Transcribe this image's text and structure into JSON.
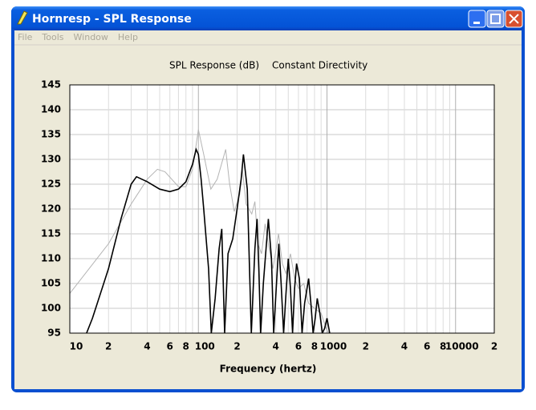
{
  "window": {
    "title": "Hornresp - SPL Response",
    "menu": [
      "File",
      "Tools",
      "Window",
      "Help"
    ]
  },
  "chart_data": {
    "type": "line",
    "title": "SPL Response (dB)",
    "subtitle": "Constant Directivity",
    "x_label": "Frequency (hertz)",
    "log_x": true,
    "grid": true,
    "xlim": [
      10,
      20000
    ],
    "ylim": [
      95,
      145
    ],
    "yticks": [
      95,
      100,
      105,
      110,
      115,
      120,
      125,
      130,
      135,
      140,
      145
    ],
    "xticks": [
      10,
      {
        "value": 20,
        "label": "2"
      },
      {
        "value": 40,
        "label": "4"
      },
      {
        "value": 60,
        "label": "6"
      },
      {
        "value": 80,
        "label": "8"
      },
      100,
      {
        "value": 200,
        "label": "2"
      },
      {
        "value": 400,
        "label": "4"
      },
      {
        "value": 600,
        "label": "6"
      },
      {
        "value": 800,
        "label": "8"
      },
      1000,
      {
        "value": 2000,
        "label": "2"
      },
      {
        "value": 4000,
        "label": "4"
      },
      {
        "value": 6000,
        "label": "6"
      },
      {
        "value": 8000,
        "label": "8"
      },
      10000,
      {
        "value": 20000,
        "label": "2"
      }
    ],
    "xminorticks": [
      30,
      50,
      70,
      90,
      300,
      500,
      700,
      900,
      3000,
      5000,
      7000,
      9000
    ],
    "series": [
      {
        "color": "#b4b4b4",
        "x": [
          10,
          20,
          30,
          40,
          48,
          55,
          70,
          80,
          90,
          100,
          110,
          125,
          140,
          163,
          175,
          190,
          210,
          220,
          235,
          260,
          275,
          290,
          310,
          330,
          350,
          380,
          420,
          450,
          480,
          520,
          560,
          600,
          660,
          720,
          800,
          900,
          1000,
          1050
        ],
        "values": [
          103,
          113,
          121,
          126,
          128,
          127.5,
          124.5,
          124.5,
          128,
          136,
          131,
          124,
          126,
          132,
          125,
          119.5,
          123,
          128,
          121,
          119,
          121.5,
          113,
          111,
          117,
          113,
          108,
          115,
          109,
          107,
          111,
          106,
          104,
          105,
          101,
          100,
          99,
          95.5,
          95
        ]
      },
      {
        "color": "#000000",
        "x": [
          13.5,
          15,
          20,
          25,
          30,
          33,
          40,
          50,
          60,
          70,
          80,
          90,
          96,
          100,
          105,
          110,
          120,
          126,
          135,
          145,
          152,
          160,
          170,
          185,
          200,
          215,
          224,
          240,
          258,
          275,
          286,
          295,
          305,
          320,
          350,
          370,
          385,
          405,
          422,
          440,
          460,
          480,
          500,
          520,
          540,
          560,
          580,
          610,
          640,
          670,
          720,
          750,
          780,
          810,
          840,
          880,
          920,
          960,
          1000,
          1050
        ],
        "values": [
          95,
          98,
          108,
          118,
          125,
          126.5,
          125.5,
          124,
          123.5,
          124,
          125.5,
          129,
          132,
          131,
          126,
          120,
          108,
          95,
          102,
          112,
          116,
          95,
          111,
          114,
          120,
          126,
          131,
          124,
          95,
          112,
          118,
          108,
          95,
          105,
          118,
          110,
          95,
          105,
          113,
          105,
          95,
          103,
          110,
          104,
          95,
          104,
          109,
          106,
          95,
          101,
          106,
          101,
          95,
          98,
          102,
          99,
          95,
          96,
          98,
          95
        ]
      }
    ]
  }
}
